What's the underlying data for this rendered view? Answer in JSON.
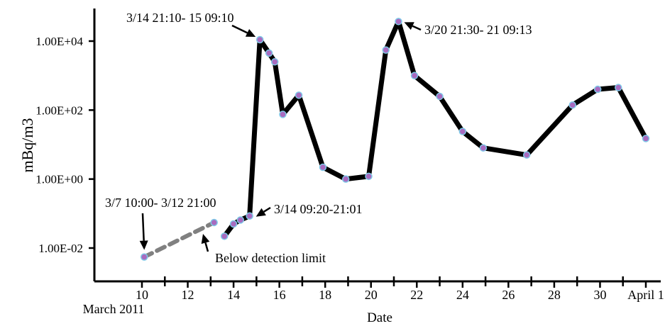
{
  "chart_data": {
    "type": "line",
    "xlabel": "Date",
    "ylabel": "mBq/m3",
    "y_scale": "log",
    "ylim": [
      0.003,
      120000
    ],
    "xlim": [
      8,
      33
    ],
    "grid": false,
    "x_tick_labels": [
      {
        "x": 10,
        "label": "10"
      },
      {
        "x": 12,
        "label": "12"
      },
      {
        "x": 14,
        "label": "14"
      },
      {
        "x": 16,
        "label": "16"
      },
      {
        "x": 18,
        "label": "18"
      },
      {
        "x": 20,
        "label": "20"
      },
      {
        "x": 22,
        "label": "22"
      },
      {
        "x": 24,
        "label": "24"
      },
      {
        "x": 26,
        "label": "26"
      },
      {
        "x": 28,
        "label": "28"
      },
      {
        "x": 30,
        "label": "30"
      },
      {
        "x": 32,
        "label": "April 1"
      }
    ],
    "x_minor_ticks": [
      11,
      13,
      15,
      17,
      19,
      21,
      23,
      25,
      27,
      29,
      31
    ],
    "x_extra_label": "March 2011",
    "y_tick_labels": [
      {
        "y": 0.01,
        "label": "1.00E-02"
      },
      {
        "y": 1,
        "label": "1.00E+00"
      },
      {
        "y": 100,
        "label": "1.00E+02"
      },
      {
        "y": 10000,
        "label": "1.00E+04"
      }
    ],
    "series": [
      {
        "style": "dashed",
        "note": "Below detection limit",
        "points": [
          {
            "x": 10.1,
            "y": 0.0055
          },
          {
            "x": 13.15,
            "y": 0.055
          }
        ]
      },
      {
        "style": "solid",
        "points": [
          {
            "x": 13.6,
            "y": 0.022
          },
          {
            "x": 14.0,
            "y": 0.05
          },
          {
            "x": 14.3,
            "y": 0.065
          },
          {
            "x": 14.7,
            "y": 0.085
          },
          {
            "x": 15.15,
            "y": 11000
          },
          {
            "x": 15.55,
            "y": 4500
          },
          {
            "x": 15.8,
            "y": 2500
          },
          {
            "x": 16.15,
            "y": 75
          },
          {
            "x": 16.85,
            "y": 270
          },
          {
            "x": 17.9,
            "y": 2.2
          },
          {
            "x": 18.9,
            "y": 1.0
          },
          {
            "x": 19.9,
            "y": 1.2
          },
          {
            "x": 20.65,
            "y": 5500
          },
          {
            "x": 21.2,
            "y": 37000
          },
          {
            "x": 21.9,
            "y": 1000
          },
          {
            "x": 23.0,
            "y": 250
          },
          {
            "x": 24.0,
            "y": 24
          },
          {
            "x": 24.9,
            "y": 8
          },
          {
            "x": 26.8,
            "y": 5
          },
          {
            "x": 28.8,
            "y": 140
          },
          {
            "x": 29.9,
            "y": 400
          },
          {
            "x": 30.8,
            "y": 450
          },
          {
            "x": 32.0,
            "y": 15
          }
        ]
      }
    ],
    "annotations": [
      {
        "text": "3/14 21:10- 15 09:10",
        "target": {
          "x": 15.15,
          "y": 11000
        }
      },
      {
        "text": "3/20 21:30- 21 09:13",
        "target": {
          "x": 21.2,
          "y": 37000
        }
      },
      {
        "text": "3/14 09:20-21:01",
        "target": {
          "x": 14.7,
          "y": 0.085
        }
      },
      {
        "text": "3/7 10:00- 3/12 21:00",
        "target": {
          "x": 10.1,
          "y": 0.0055
        }
      },
      {
        "text": "Below detection limit",
        "target": {
          "x": 12.6,
          "y": 0.025
        }
      }
    ]
  }
}
